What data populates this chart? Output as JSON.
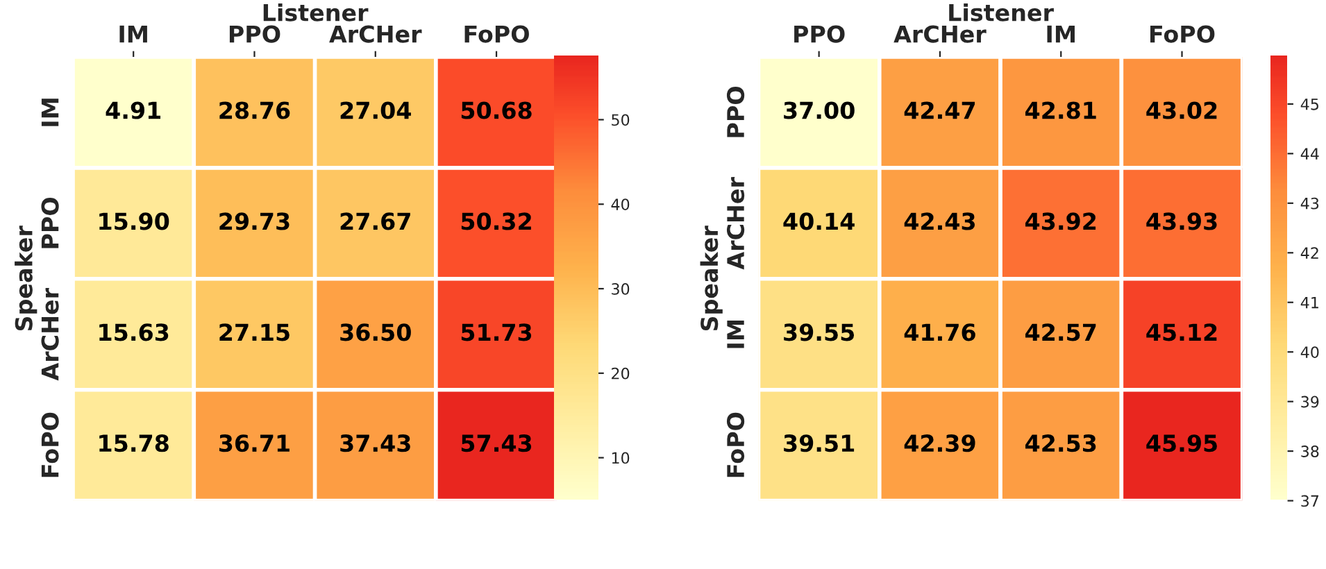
{
  "chart_data": [
    {
      "type": "heatmap",
      "xlabel": "Listener",
      "ylabel": "Speaker",
      "categories": [
        "IM",
        "PPO",
        "ArCHer",
        "FoPO"
      ],
      "y_categories": [
        "IM",
        "PPO",
        "ArCHer",
        "FoPO"
      ],
      "cells": [
        [
          4.91,
          28.76,
          27.04,
          50.68
        ],
        [
          15.9,
          29.73,
          27.67,
          50.32
        ],
        [
          15.63,
          27.15,
          36.5,
          51.73
        ],
        [
          15.78,
          36.71,
          37.43,
          57.43
        ]
      ],
      "cell_labels": [
        [
          "4.91",
          "28.76",
          "27.04",
          "50.68"
        ],
        [
          "15.90",
          "29.73",
          "27.67",
          "50.32"
        ],
        [
          "15.63",
          "27.15",
          "36.50",
          "51.73"
        ],
        [
          "15.78",
          "36.71",
          "37.43",
          "57.43"
        ]
      ],
      "clim": [
        4.91,
        57.43
      ],
      "cticks": [
        10,
        20,
        30,
        40,
        50
      ]
    },
    {
      "type": "heatmap",
      "xlabel": "Listener",
      "ylabel": "Speaker",
      "categories": [
        "PPO",
        "ArCHer",
        "IM",
        "FoPO"
      ],
      "y_categories": [
        "PPO",
        "ArCHer",
        "IM",
        "FoPO"
      ],
      "cells": [
        [
          37.0,
          42.47,
          42.81,
          43.02
        ],
        [
          40.14,
          42.43,
          43.92,
          43.93
        ],
        [
          39.55,
          41.76,
          42.57,
          45.12
        ],
        [
          39.51,
          42.39,
          42.53,
          45.95
        ]
      ],
      "cell_labels": [
        [
          "37.00",
          "42.47",
          "42.81",
          "43.02"
        ],
        [
          "40.14",
          "42.43",
          "43.92",
          "43.93"
        ],
        [
          "39.55",
          "41.76",
          "42.57",
          "45.12"
        ],
        [
          "39.51",
          "42.39",
          "42.53",
          "45.95"
        ]
      ],
      "clim": [
        37.0,
        45.95
      ],
      "cticks": [
        37,
        38,
        39,
        40,
        41,
        42,
        43,
        44,
        45
      ]
    }
  ]
}
